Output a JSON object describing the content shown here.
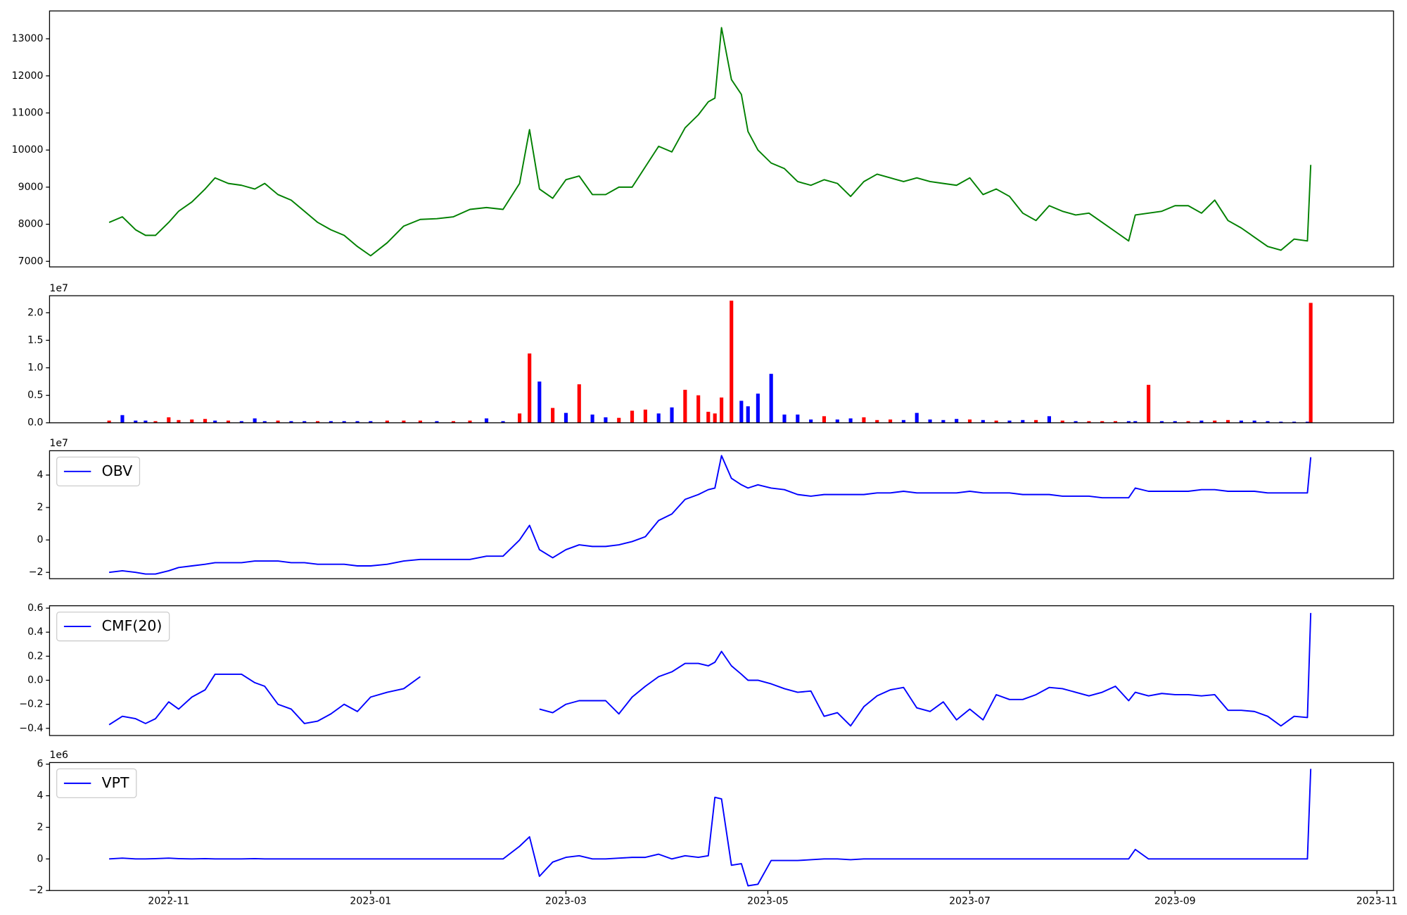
{
  "chart_data": {
    "x": [
      19279,
      19283,
      19287,
      19290,
      19293,
      19297,
      19300,
      19304,
      19308,
      19311,
      19315,
      19319,
      19323,
      19326,
      19330,
      19334,
      19338,
      19342,
      19346,
      19350,
      19354,
      19358,
      19363,
      19368,
      19373,
      19378,
      19383,
      19388,
      19393,
      19398,
      19403,
      19406,
      19409,
      19413,
      19417,
      19421,
      19425,
      19429,
      19433,
      19437,
      19441,
      19445,
      19449,
      19453,
      19457,
      19460,
      19462,
      19464,
      19467,
      19470,
      19472,
      19475,
      19479,
      19483,
      19487,
      19491,
      19495,
      19499,
      19503,
      19507,
      19511,
      19515,
      19519,
      19523,
      19527,
      19531,
      19535,
      19539,
      19543,
      19547,
      19551,
      19555,
      19559,
      19563,
      19567,
      19571,
      19575,
      19579,
      19583,
      19587,
      19589,
      19593,
      19597,
      19601,
      19605,
      19609,
      19613,
      19617,
      19621,
      19625,
      19629,
      19633,
      19637,
      19641,
      19642
    ],
    "xlim": [
      19261,
      19667
    ],
    "xticks": [
      {
        "value": 19297,
        "label": "2022-11"
      },
      {
        "value": 19358,
        "label": "2023-01"
      },
      {
        "value": 19417,
        "label": "2023-03"
      },
      {
        "value": 19478,
        "label": "2023-05"
      },
      {
        "value": 19539,
        "label": "2023-07"
      },
      {
        "value": 19601,
        "label": "2023-09"
      },
      {
        "value": 19662,
        "label": "2023-11"
      }
    ],
    "panels": [
      {
        "type": "line",
        "ylim": [
          6850,
          13750
        ],
        "yticks": [
          7000,
          8000,
          9000,
          10000,
          11000,
          12000,
          13000
        ],
        "series": [
          {
            "color": "#008000",
            "values": [
              8050,
              8200,
              7850,
              7700,
              7700,
              8050,
              8350,
              8600,
              8950,
              9250,
              9100,
              9050,
              8950,
              9100,
              8800,
              8650,
              8350,
              8050,
              7850,
              7700,
              7400,
              7150,
              7500,
              7950,
              8130,
              8150,
              8200,
              8400,
              8450,
              8400,
              9100,
              10550,
              8950,
              8700,
              9200,
              9300,
              8800,
              8800,
              9000,
              9000,
              9550,
              10100,
              9950,
              10600,
              10950,
              11300,
              11400,
              13300,
              11900,
              11500,
              10500,
              10000,
              9650,
              9500,
              9150,
              9050,
              9200,
              9100,
              8750,
              9150,
              9350,
              9250,
              9150,
              9250,
              9150,
              9100,
              9050,
              9250,
              8800,
              8950,
              8750,
              8300,
              8100,
              8500,
              8350,
              8250,
              8300,
              8050,
              7800,
              7550,
              8250,
              8300,
              8350,
              8500,
              8500,
              8300,
              8650,
              8100,
              7900,
              7650,
              7400,
              7300,
              7600,
              7550,
              9600
            ]
          }
        ]
      },
      {
        "type": "bar",
        "offset_text": "1e7",
        "ylim": [
          0,
          23100000
        ],
        "yticks": [
          {
            "value": 0,
            "label": "0.0"
          },
          {
            "value": 5000000,
            "label": "0.5"
          },
          {
            "value": 10000000,
            "label": "1.0"
          },
          {
            "value": 15000000,
            "label": "1.5"
          },
          {
            "value": 20000000,
            "label": "2.0"
          }
        ],
        "values": [
          400000,
          1400000,
          400000,
          400000,
          300000,
          1000000,
          500000,
          600000,
          700000,
          400000,
          400000,
          300000,
          800000,
          300000,
          400000,
          300000,
          300000,
          300000,
          300000,
          300000,
          300000,
          300000,
          400000,
          400000,
          400000,
          300000,
          300000,
          400000,
          800000,
          300000,
          1700000,
          12600000,
          7500000,
          2700000,
          1800000,
          7000000,
          1500000,
          1000000,
          900000,
          2200000,
          2400000,
          1700000,
          2800000,
          6000000,
          5000000,
          2000000,
          1700000,
          4600000,
          22200000,
          4000000,
          3000000,
          5300000,
          8900000,
          1500000,
          1500000,
          600000,
          1200000,
          600000,
          800000,
          1000000,
          500000,
          600000,
          500000,
          1800000,
          600000,
          500000,
          700000,
          600000,
          500000,
          400000,
          400000,
          500000,
          500000,
          1200000,
          400000,
          300000,
          300000,
          300000,
          300000,
          300000,
          300000,
          6900000,
          300000,
          300000,
          300000,
          400000,
          400000,
          500000,
          400000,
          400000,
          300000,
          200000,
          200000,
          200000,
          21800000
        ],
        "colors": [
          "#ff0000",
          "#0000ff",
          "#0000ff",
          "#0000ff",
          "#ff0000",
          "#ff0000",
          "#ff0000",
          "#ff0000",
          "#ff0000",
          "#0000ff",
          "#ff0000",
          "#0000ff",
          "#0000ff",
          "#0000ff",
          "#ff0000",
          "#0000ff",
          "#0000ff",
          "#ff0000",
          "#0000ff",
          "#0000ff",
          "#0000ff",
          "#0000ff",
          "#ff0000",
          "#ff0000",
          "#ff0000",
          "#0000ff",
          "#ff0000",
          "#ff0000",
          "#0000ff",
          "#0000ff",
          "#ff0000",
          "#ff0000",
          "#0000ff",
          "#ff0000",
          "#0000ff",
          "#ff0000",
          "#0000ff",
          "#0000ff",
          "#ff0000",
          "#ff0000",
          "#ff0000",
          "#0000ff",
          "#0000ff",
          "#ff0000",
          "#ff0000",
          "#ff0000",
          "#ff0000",
          "#ff0000",
          "#ff0000",
          "#0000ff",
          "#0000ff",
          "#0000ff",
          "#0000ff",
          "#0000ff",
          "#0000ff",
          "#0000ff",
          "#ff0000",
          "#0000ff",
          "#0000ff",
          "#ff0000",
          "#ff0000",
          "#ff0000",
          "#0000ff",
          "#0000ff",
          "#0000ff",
          "#0000ff",
          "#0000ff",
          "#ff0000",
          "#0000ff",
          "#ff0000",
          "#0000ff",
          "#0000ff",
          "#ff0000",
          "#0000ff",
          "#ff0000",
          "#0000ff",
          "#ff0000",
          "#ff0000",
          "#ff0000",
          "#0000ff",
          "#0000ff",
          "#ff0000",
          "#0000ff",
          "#0000ff",
          "#ff0000",
          "#0000ff",
          "#ff0000",
          "#ff0000",
          "#0000ff",
          "#0000ff",
          "#0000ff",
          "#0000ff",
          "#0000ff",
          "#0000ff",
          "#ff0000"
        ]
      },
      {
        "type": "line",
        "offset_text": "1e7",
        "legend": "upper left",
        "ylim": [
          -23900000,
          55000000
        ],
        "yticks": [
          {
            "value": -20000000,
            "label": "−2"
          },
          0,
          {
            "value": 20000000,
            "label": "2"
          },
          {
            "value": 40000000,
            "label": "4"
          }
        ],
        "series": [
          {
            "name": "OBV",
            "color": "#0000ff",
            "values": [
              -20000000,
              -19000000,
              -20000000,
              -21000000,
              -21000000,
              -19000000,
              -17000000,
              -16000000,
              -15000000,
              -14000000,
              -14000000,
              -14000000,
              -13000000,
              -13000000,
              -13000000,
              -14000000,
              -14000000,
              -15000000,
              -15000000,
              -15000000,
              -16000000,
              -16000000,
              -15000000,
              -13000000,
              -12000000,
              -12000000,
              -12000000,
              -12000000,
              -10000000,
              -10000000,
              0,
              9000000,
              -6000000,
              -11000000,
              -6000000,
              -3000000,
              -4000000,
              -4000000,
              -3000000,
              -1000000,
              2000000,
              12000000,
              16000000,
              25000000,
              28000000,
              31000000,
              32000000,
              52000000,
              38000000,
              34000000,
              32000000,
              34000000,
              32000000,
              31000000,
              28000000,
              27000000,
              28000000,
              28000000,
              28000000,
              28000000,
              29000000,
              29000000,
              30000000,
              29000000,
              29000000,
              29000000,
              29000000,
              30000000,
              29000000,
              29000000,
              29000000,
              28000000,
              28000000,
              28000000,
              27000000,
              27000000,
              27000000,
              26000000,
              26000000,
              26000000,
              32000000,
              30000000,
              30000000,
              30000000,
              30000000,
              31000000,
              31000000,
              30000000,
              30000000,
              30000000,
              29000000,
              29000000,
              29000000,
              29000000,
              51000000
            ]
          }
        ]
      },
      {
        "type": "line",
        "legend": "upper left",
        "ylim": [
          -0.46,
          0.62
        ],
        "yticks": [
          {
            "value": -0.4,
            "label": "−0.4"
          },
          {
            "value": -0.2,
            "label": "−0.2"
          },
          {
            "value": 0,
            "label": "0.0"
          },
          0.2,
          0.4,
          0.6
        ],
        "series": [
          {
            "name": "CMF(20)",
            "color": "#0000ff",
            "values": [
              -0.37,
              -0.3,
              -0.32,
              -0.36,
              -0.32,
              -0.18,
              -0.24,
              -0.14,
              -0.08,
              0.05,
              0.05,
              0.05,
              -0.02,
              -0.05,
              -0.2,
              -0.24,
              -0.36,
              -0.34,
              -0.28,
              -0.2,
              -0.26,
              -0.14,
              -0.1,
              -0.07,
              0.03,
              null,
              null,
              null,
              null,
              null,
              null,
              null,
              -0.24,
              -0.27,
              -0.2,
              -0.17,
              -0.17,
              -0.17,
              -0.28,
              -0.14,
              -0.05,
              0.03,
              0.07,
              0.14,
              0.14,
              0.12,
              0.15,
              0.24,
              0.12,
              0.05,
              0,
              0,
              -0.03,
              -0.07,
              -0.1,
              -0.09,
              -0.3,
              -0.27,
              -0.38,
              -0.22,
              -0.13,
              -0.08,
              -0.06,
              -0.23,
              -0.26,
              -0.18,
              -0.33,
              -0.24,
              -0.33,
              -0.12,
              -0.16,
              -0.16,
              -0.12,
              -0.06,
              -0.07,
              -0.1,
              -0.13,
              -0.1,
              -0.05,
              -0.17,
              -0.1,
              -0.13,
              -0.11,
              -0.12,
              -0.12,
              -0.13,
              -0.12,
              -0.25,
              -0.25,
              -0.26,
              -0.3,
              -0.38,
              -0.3,
              -0.31,
              0.56
            ]
          }
        ]
      },
      {
        "type": "line",
        "offset_text": "1e6",
        "legend": "upper left",
        "ylim": [
          -2000000,
          6100000
        ],
        "yticks": [
          {
            "value": -2000000,
            "label": "−2"
          },
          0,
          {
            "value": 2000000,
            "label": "2"
          },
          {
            "value": 4000000,
            "label": "4"
          },
          {
            "value": 6000000,
            "label": "6"
          }
        ],
        "series": [
          {
            "name": "VPT",
            "color": "#0000ff",
            "values": [
              0,
              50000,
              0,
              0,
              20000,
              50000,
              20000,
              0,
              20000,
              0,
              0,
              0,
              20000,
              0,
              0,
              0,
              0,
              0,
              0,
              0,
              0,
              0,
              0,
              0,
              0,
              0,
              0,
              0,
              0,
              0,
              800000,
              1400000,
              -1100000,
              -200000,
              100000,
              200000,
              0,
              0,
              50000,
              100000,
              100000,
              300000,
              0,
              200000,
              100000,
              200000,
              3900000,
              3800000,
              -400000,
              -300000,
              -1700000,
              -1600000,
              -100000,
              -100000,
              -100000,
              -50000,
              0,
              0,
              -50000,
              0,
              0,
              0,
              0,
              0,
              0,
              0,
              0,
              0,
              0,
              0,
              0,
              0,
              0,
              0,
              0,
              0,
              0,
              0,
              0,
              0,
              600000,
              0,
              0,
              0,
              0,
              0,
              0,
              0,
              0,
              0,
              0,
              0,
              0,
              0,
              5700000
            ]
          }
        ]
      }
    ]
  }
}
